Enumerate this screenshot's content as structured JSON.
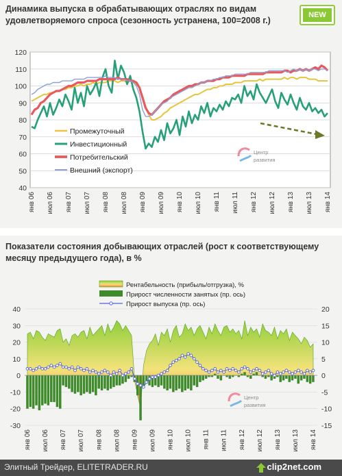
{
  "badge": "NEW",
  "chart1": {
    "title": "Динамика выпуска в обрабатывающих отраслях по видам удовлетворяемого спроса (сезонность устранена, 100=2008 г.)",
    "watermark": [
      "Центр",
      "развития"
    ]
  },
  "chart2": {
    "title": "Показатели состояния добывающих отраслей (рост к соответствующему месяцу предыдущего года), в %",
    "watermark": [
      "Центр",
      "развития"
    ]
  },
  "footer": {
    "source": "Элитный Трейдер, ELITETRADER.RU",
    "brand": "clip2net.com"
  },
  "chart_data": [
    {
      "type": "line",
      "title": "Динамика выпуска в обрабатывающих отраслях по видам удовлетворяемого спроса (сезонность устранена, 100=2008 г.)",
      "xlabel": "",
      "ylabel": "",
      "ylim": [
        40,
        120
      ],
      "yticks": [
        40,
        50,
        60,
        70,
        80,
        90,
        100,
        110,
        120
      ],
      "grid": true,
      "legend": "center-left",
      "x_start": "2006-01",
      "x_end": "2014-01",
      "xticks": [
        "янв 06",
        "июл 06",
        "янв 07",
        "июл 07",
        "янв 08",
        "июл 08",
        "янв 09",
        "июл 09",
        "янв 10",
        "июл 10",
        "янв 11",
        "июл 11",
        "янв 12",
        "июл 12",
        "янв 13",
        "июл 13",
        "янв 14"
      ],
      "series": [
        {
          "name": "Промежуточный",
          "color": "#e8c43a",
          "values": [
            91,
            92,
            93,
            94,
            95,
            95,
            96,
            96,
            97,
            97,
            98,
            98,
            99,
            99,
            100,
            100,
            101,
            100,
            101,
            101,
            102,
            101,
            102,
            102,
            102,
            103,
            103,
            103,
            102,
            103,
            103,
            102,
            103,
            102,
            101,
            99,
            94,
            88,
            83,
            80,
            80,
            81,
            82,
            84,
            85,
            87,
            88,
            89,
            90,
            91,
            92,
            93,
            94,
            95,
            95,
            96,
            97,
            98,
            98,
            99,
            99,
            100,
            100,
            101,
            101,
            101,
            102,
            102,
            102,
            103,
            103,
            103,
            103,
            103,
            104,
            103,
            104,
            104,
            104,
            104,
            104,
            104,
            105,
            104,
            105,
            105,
            104,
            105,
            105,
            105,
            104,
            104,
            104,
            103,
            103,
            103,
            103
          ]
        },
        {
          "name": "Инвестиционный",
          "color": "#27a07a",
          "values": [
            76,
            75,
            80,
            84,
            88,
            82,
            90,
            83,
            87,
            92,
            88,
            95,
            91,
            86,
            99,
            90,
            96,
            88,
            100,
            95,
            98,
            102,
            94,
            105,
            110,
            100,
            96,
            115,
            104,
            112,
            108,
            101,
            106,
            98,
            93,
            85,
            73,
            63,
            66,
            64,
            70,
            67,
            74,
            68,
            78,
            72,
            75,
            80,
            71,
            82,
            76,
            85,
            78,
            83,
            80,
            88,
            84,
            90,
            82,
            87,
            85,
            89,
            86,
            91,
            88,
            93,
            92,
            95,
            90,
            100,
            94,
            97,
            92,
            101,
            96,
            93,
            90,
            94,
            98,
            91,
            87,
            96,
            92,
            89,
            95,
            90,
            86,
            93,
            88,
            86,
            90,
            85,
            87,
            84,
            86,
            82,
            84
          ]
        },
        {
          "name": "Потребительский",
          "color": "#e8595e",
          "values": [
            83,
            86,
            87,
            90,
            91,
            93,
            95,
            96,
            97,
            97,
            98,
            99,
            100,
            100,
            101,
            102,
            102,
            102,
            103,
            103,
            103,
            103,
            104,
            104,
            104,
            104,
            104,
            104,
            105,
            104,
            104,
            104,
            103,
            103,
            102,
            99,
            93,
            87,
            84,
            83,
            85,
            87,
            89,
            91,
            92,
            93,
            95,
            96,
            97,
            98,
            99,
            100,
            100,
            101,
            101,
            102,
            102,
            103,
            103,
            103,
            104,
            104,
            105,
            105,
            105,
            106,
            106,
            106,
            106,
            106,
            107,
            107,
            107,
            107,
            107,
            107,
            108,
            108,
            108,
            108,
            108,
            108,
            109,
            109,
            108,
            109,
            109,
            110,
            109,
            110,
            109,
            110,
            111,
            110,
            112,
            111,
            109
          ]
        },
        {
          "name": "Внешний (экспорт)",
          "color": "#8aa0d8",
          "values": [
            95,
            96,
            98,
            99,
            100,
            101,
            101,
            102,
            102,
            102,
            103,
            103,
            103,
            103,
            104,
            104,
            104,
            104,
            105,
            105,
            105,
            105,
            105,
            105,
            106,
            105,
            105,
            105,
            104,
            104,
            104,
            103,
            103,
            102,
            100,
            95,
            86,
            82,
            82,
            83,
            85,
            87,
            89,
            90,
            91,
            93,
            94,
            95,
            96,
            97,
            98,
            99,
            99,
            100,
            101,
            102,
            102,
            103,
            103,
            104,
            104,
            105,
            105,
            106,
            106,
            106,
            107,
            107,
            107,
            107,
            107,
            108,
            108,
            108,
            108,
            108,
            108,
            109,
            109,
            109,
            109,
            109,
            109,
            108,
            109,
            110,
            109,
            110,
            109,
            110,
            109,
            110,
            110,
            109,
            110,
            110,
            109
          ]
        }
      ],
      "annotations": [
        "downward trend arrow on Инвестиционный, 2013–2014"
      ]
    },
    {
      "type": "bar",
      "title": "Показатели состояния добывающих отраслей (рост к соответствующему месяцу предыдущего года), в %",
      "xlabel": "",
      "ylabel": "",
      "ylim_left": [
        -30,
        40
      ],
      "yticks_left": [
        -30,
        -20,
        -10,
        0,
        10,
        20,
        30,
        40
      ],
      "ylim_right": [
        -15,
        20
      ],
      "yticks_right": [
        -15,
        -10,
        -5,
        0,
        5,
        10,
        15,
        20
      ],
      "legend": "top-center",
      "x_start": "2006-01",
      "x_end": "2014-01",
      "xticks": [
        "янв 06",
        "июл 06",
        "янв 07",
        "июл 07",
        "янв 08",
        "июл 08",
        "янв 09",
        "июл 09",
        "янв 10",
        "июл 10",
        "янв 11",
        "июл 11",
        "янв 12",
        "июл 12",
        "янв 13",
        "июл 13",
        "янв 14"
      ],
      "series": [
        {
          "name": "Рентабельность (прибыль/отгрузка), %",
          "type": "area",
          "axis": "left",
          "color": "#e8a040",
          "values": [
            25,
            26,
            22,
            27,
            26,
            23,
            21,
            25,
            24,
            23,
            27,
            28,
            20,
            22,
            18,
            24,
            25,
            23,
            26,
            27,
            22,
            29,
            24,
            26,
            28,
            30,
            24,
            31,
            26,
            29,
            33,
            31,
            27,
            30,
            27,
            24,
            -3,
            -12,
            -20,
            6,
            15,
            19,
            21,
            25,
            18,
            26,
            24,
            28,
            20,
            27,
            30,
            23,
            25,
            31,
            27,
            29,
            24,
            28,
            30,
            26,
            22,
            29,
            25,
            31,
            27,
            24,
            29,
            30,
            26,
            28,
            25,
            27,
            22,
            33,
            24,
            29,
            26,
            28,
            23,
            31,
            27,
            26,
            24,
            29,
            22,
            27,
            25,
            28,
            21,
            26,
            24,
            22,
            19,
            23,
            21,
            17,
            19
          ]
        },
        {
          "name": "Прирост численности занятых  (пр. ось)",
          "type": "bar",
          "axis": "right",
          "color": "#3f8a2a",
          "values": [
            -10,
            -9.5,
            -10,
            -9,
            -10.5,
            -9,
            -8.5,
            -9,
            -8,
            -8,
            -9.5,
            -10,
            -3,
            -3.5,
            -4,
            -5,
            -5.5,
            -5,
            -6,
            -5.5,
            -5,
            -5.5,
            -5,
            -6,
            -4,
            -4.5,
            -4,
            -4.5,
            -4,
            -3.5,
            -3,
            -3,
            -2.5,
            -2,
            -1,
            -0.5,
            -2,
            -6,
            -13.5,
            -3,
            -2.5,
            -3,
            -3.5,
            -3,
            -3.5,
            -3,
            -4,
            -4.5,
            -4,
            -5,
            -4.5,
            -4,
            -5,
            -4.5,
            -4,
            -4.5,
            -3,
            -3.5,
            -2,
            -1.5,
            -1,
            -0.5,
            -0.5,
            0.5,
            -1,
            -1.5,
            0,
            -0.5,
            -1,
            -0.5,
            0,
            -0.5,
            0.5,
            1,
            -0.5,
            -1,
            0.5,
            1,
            0,
            -0.5,
            -1,
            -0.5,
            -1.5,
            -1,
            -0.5,
            -2,
            -1.5,
            -1,
            -2,
            -1.5,
            -1,
            -2.5,
            -1.5,
            -1,
            -2,
            -2.5,
            -2
          ]
        },
        {
          "name": "Прирост выпуска  (пр. ось)",
          "type": "line",
          "axis": "right",
          "color": "#5560d8",
          "values": [
            2,
            2,
            1.5,
            2,
            2.5,
            2,
            2,
            2.5,
            3,
            2.5,
            3,
            3.5,
            2.5,
            2.5,
            2,
            2.5,
            1.5,
            2.5,
            2,
            1.5,
            2,
            1,
            1.5,
            1,
            0.5,
            1,
            1.5,
            1,
            0,
            1,
            0.5,
            1.5,
            0,
            0.5,
            1,
            2,
            -1,
            -2.5,
            -3,
            -3.5,
            -2,
            -1,
            -0.5,
            -0.5,
            0,
            0.5,
            1,
            1.5,
            3,
            4,
            4.5,
            5,
            6,
            5.5,
            6.5,
            6,
            5,
            4,
            3,
            2,
            1.5,
            1,
            1.5,
            2,
            1,
            1.5,
            1,
            2,
            1.5,
            2,
            1.5,
            1,
            2,
            2.5,
            2,
            1,
            1.5,
            2,
            1.5,
            0.5,
            1,
            1.5,
            0.5,
            0,
            1,
            0.5,
            1,
            1.5,
            1,
            0.5,
            1,
            1.5,
            1,
            0.5,
            1.5,
            1,
            1.5
          ]
        }
      ]
    }
  ]
}
